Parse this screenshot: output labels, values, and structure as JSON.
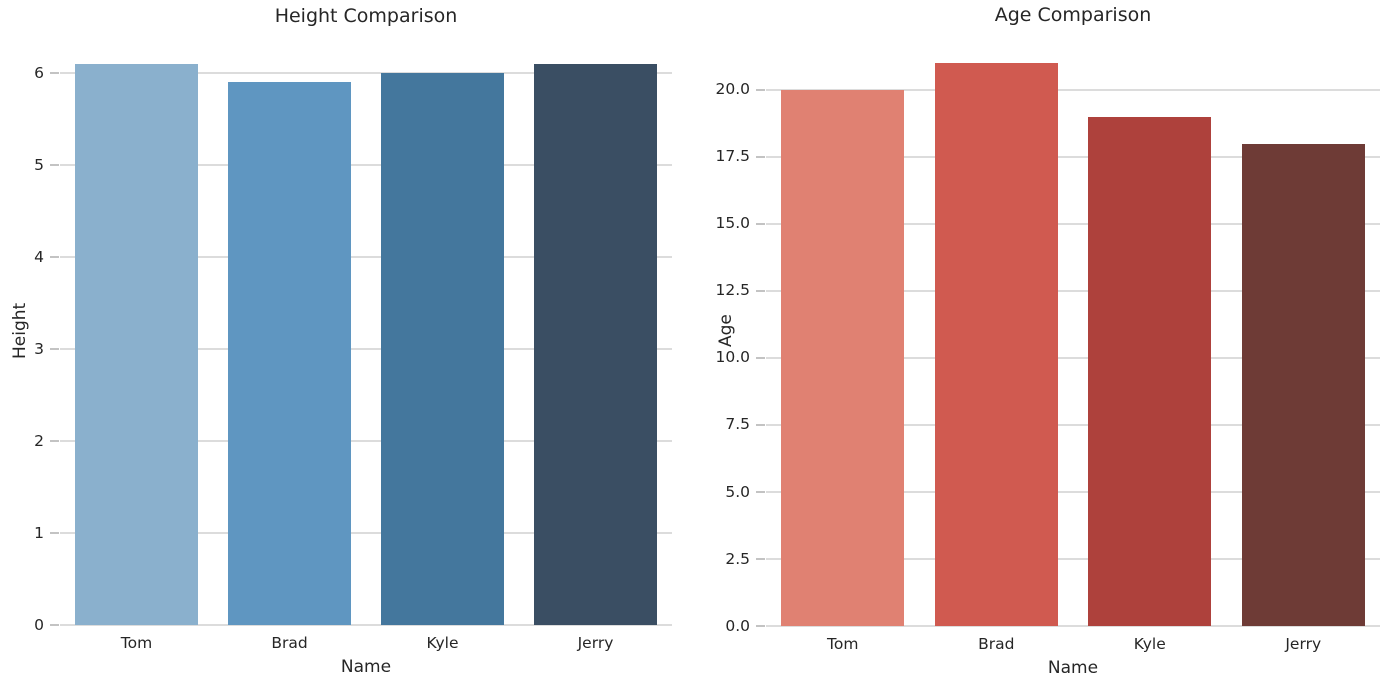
{
  "figure": {
    "background": "#ffffff",
    "text_color": "#262626",
    "grid_color": "#dcdcdc",
    "tick_color": "#c3c3c3"
  },
  "chart_data": [
    {
      "type": "bar",
      "title": "Height Comparison",
      "xlabel": "Name",
      "ylabel": "Height",
      "categories": [
        "Tom",
        "Brad",
        "Kyle",
        "Jerry"
      ],
      "values": [
        6.1,
        5.9,
        6.0,
        6.1
      ],
      "bar_colors": [
        "#8AB0CD",
        "#5F96C1",
        "#44779D",
        "#3A4E63"
      ],
      "ylim": [
        0,
        6.405
      ],
      "yticks": [
        0,
        1,
        2,
        3,
        4,
        5,
        6
      ],
      "ytick_labels": [
        "0",
        "1",
        "2",
        "3",
        "4",
        "5",
        "6"
      ],
      "grid": true,
      "legend": null,
      "palette_name": "blues-dark"
    },
    {
      "type": "bar",
      "title": "Age Comparison",
      "xlabel": "Name",
      "ylabel": "Age",
      "categories": [
        "Tom",
        "Brad",
        "Kyle",
        "Jerry"
      ],
      "values": [
        20,
        21,
        19,
        18
      ],
      "bar_colors": [
        "#E08172",
        "#D05A50",
        "#AE413C",
        "#6E3B36"
      ],
      "ylim": [
        0,
        22.05
      ],
      "yticks": [
        0,
        2.5,
        5,
        7.5,
        10,
        12.5,
        15,
        17.5,
        20
      ],
      "ytick_labels": [
        "0.0",
        "2.5",
        "5.0",
        "7.5",
        "10.0",
        "12.5",
        "15.0",
        "17.5",
        "20.0"
      ],
      "grid": true,
      "legend": null,
      "palette_name": "reds-dark"
    }
  ]
}
